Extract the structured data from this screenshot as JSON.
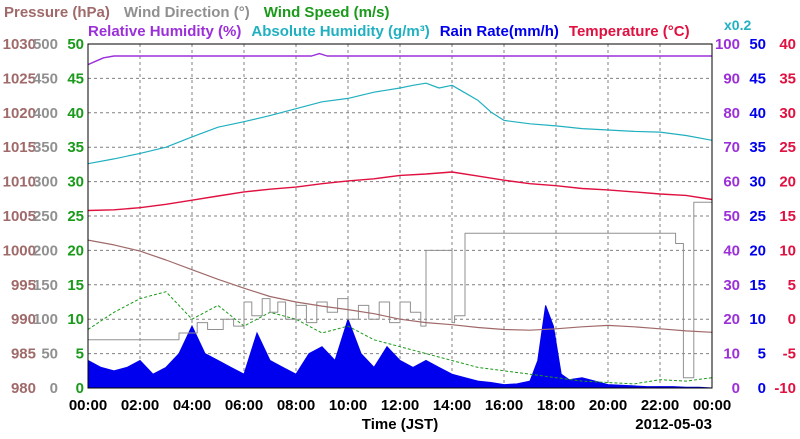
{
  "chart_data": {
    "type": "line",
    "date_label": "2012-05-03",
    "xlabel": "Time (JST)",
    "xlim": [
      0,
      24
    ],
    "x_ticks": [
      "00:00",
      "02:00",
      "04:00",
      "06:00",
      "08:00",
      "10:00",
      "12:00",
      "14:00",
      "16:00",
      "18:00",
      "20:00",
      "22:00",
      "00:00"
    ],
    "colors": {
      "pressure": "#a06a6a",
      "wind_direction": "#909090",
      "wind_speed": "#1a9a1a",
      "humidity": "#9b30d9",
      "abs_humidity": "#20b0c0",
      "rain": "#0000ee",
      "temperature": "#e01040",
      "grid": "#808080"
    },
    "legend_row1": [
      {
        "key": "pressure",
        "label": "Pressure (hPa)"
      },
      {
        "key": "wind_direction",
        "label": "Wind Direction (°)"
      },
      {
        "key": "wind_speed",
        "label": "Wind Speed (m/s)"
      }
    ],
    "legend_row2": [
      {
        "key": "humidity",
        "label": "Relative Humidity (%)"
      },
      {
        "key": "abs_humidity",
        "label": "Absolute Humidity (g/m³)"
      },
      {
        "key": "rain",
        "label": "Rain Rate(mm/h)"
      },
      {
        "key": "temperature",
        "label": "Temperature (°C)"
      }
    ],
    "abs_humidity_scale_note": "x0.2",
    "axes": {
      "pressure": {
        "color_key": "pressure",
        "ticks": [
          "980",
          "985",
          "990",
          "995",
          "1000",
          "1005",
          "1010",
          "1015",
          "1020",
          "1025",
          "1030"
        ]
      },
      "wind_direction": {
        "color_key": "wind_direction",
        "ticks": [
          "0",
          "50",
          "100",
          "150",
          "200",
          "250",
          "300",
          "350",
          "400",
          "450",
          "500"
        ]
      },
      "wind_speed": {
        "color_key": "wind_speed",
        "ticks": [
          "0",
          "5",
          "10",
          "15",
          "20",
          "25",
          "30",
          "35",
          "40",
          "45",
          "50"
        ]
      },
      "humidity": {
        "color_key": "humidity",
        "ticks": [
          "0",
          "10",
          "20",
          "30",
          "40",
          "50",
          "60",
          "70",
          "80",
          "90",
          "100"
        ]
      },
      "rain": {
        "color_key": "rain",
        "ticks": [
          "0",
          "5",
          "10",
          "15",
          "20",
          "25",
          "30",
          "35",
          "40",
          "45",
          "50"
        ]
      },
      "temperature": {
        "color_key": "temperature",
        "ticks": [
          "-10",
          "-5",
          "0",
          "5",
          "10",
          "15",
          "20",
          "25",
          "30",
          "35",
          "40"
        ]
      }
    },
    "series": {
      "temperature": {
        "unit": "°C",
        "x": [
          0,
          1,
          2,
          3,
          4,
          5,
          6,
          7,
          8,
          9,
          10,
          11,
          12,
          13,
          14,
          15,
          16,
          17,
          18,
          19,
          20,
          21,
          22,
          23,
          24
        ],
        "values": [
          15.8,
          15.9,
          16.2,
          16.7,
          17.3,
          17.9,
          18.5,
          18.9,
          19.2,
          19.7,
          20.1,
          20.4,
          20.9,
          21.1,
          21.4,
          20.8,
          20.2,
          19.7,
          19.4,
          19.0,
          18.8,
          18.5,
          18.2,
          18.0,
          17.4
        ]
      },
      "abs_humidity": {
        "unit": "g/m³",
        "scale": "x0.2",
        "x": [
          0,
          1,
          2,
          3,
          4,
          5,
          6,
          7,
          8,
          9,
          10,
          11,
          12,
          12.5,
          13,
          13.5,
          14,
          14.5,
          15,
          15.5,
          16,
          17,
          18,
          19,
          20,
          21,
          22,
          23,
          24
        ],
        "values": [
          32.6,
          33.3,
          34.1,
          35.0,
          36.5,
          37.9,
          38.7,
          39.6,
          40.6,
          41.6,
          42.1,
          43.0,
          43.6,
          44.0,
          44.3,
          43.6,
          44.0,
          42.9,
          41.8,
          40.1,
          38.9,
          38.4,
          38.1,
          37.7,
          37.5,
          37.3,
          37.2,
          36.7,
          36.0
        ]
      },
      "humidity": {
        "unit": "%",
        "x": [
          0,
          0.3,
          0.6,
          1,
          2,
          3,
          4,
          5,
          6,
          7,
          8,
          8.6,
          8.9,
          9.2,
          10,
          12,
          14,
          16,
          18,
          20,
          22,
          23.5,
          24
        ],
        "values": [
          94,
          95,
          96,
          96.5,
          96.5,
          96.5,
          96.5,
          96.5,
          96.5,
          96.5,
          96.5,
          96.5,
          97.2,
          96.5,
          96.5,
          96.5,
          96.5,
          96.5,
          96.5,
          96.5,
          96.5,
          96.5,
          96.5
        ]
      },
      "pressure": {
        "unit": "hPa",
        "x": [
          0,
          1,
          2,
          3,
          4,
          5,
          6,
          7,
          8,
          9,
          10,
          11,
          12,
          13,
          14,
          15,
          16,
          17,
          18,
          19,
          20,
          21,
          22,
          23,
          24
        ],
        "values": [
          1001.5,
          1000.8,
          999.9,
          998.6,
          997.2,
          995.8,
          994.5,
          993.3,
          992.5,
          991.9,
          991.4,
          990.8,
          990.0,
          989.5,
          989.2,
          988.8,
          988.5,
          988.4,
          988.6,
          988.9,
          989.1,
          988.9,
          988.6,
          988.3,
          988.1
        ]
      },
      "wind_direction": {
        "unit": "°",
        "x": [
          0,
          2,
          3.5,
          4.2,
          4.6,
          5.2,
          5.6,
          6.0,
          6.3,
          6.7,
          7.0,
          7.3,
          7.6,
          8.0,
          8.4,
          8.8,
          9.2,
          9.6,
          10.0,
          10.4,
          10.8,
          11.2,
          11.6,
          12.0,
          12.4,
          12.8,
          13.0,
          13.5,
          14.0,
          14.1,
          14.5,
          15.0,
          18,
          20,
          22,
          22.6,
          22.9,
          23.3,
          24
        ],
        "values": [
          70,
          70,
          80,
          95,
          85,
          100,
          90,
          125,
          105,
          130,
          110,
          125,
          100,
          120,
          95,
          125,
          110,
          130,
          100,
          120,
          100,
          125,
          95,
          125,
          110,
          90,
          200,
          200,
          95,
          105,
          225,
          225,
          225,
          225,
          225,
          210,
          15,
          270,
          270
        ]
      },
      "wind_speed": {
        "unit": "m/s",
        "x": [
          0,
          1,
          2,
          3,
          4,
          5,
          6,
          7,
          8,
          9,
          10,
          11,
          12,
          13,
          14,
          15,
          16,
          17,
          18,
          19,
          20,
          21,
          22,
          23,
          24
        ],
        "values": [
          8.5,
          11,
          13,
          14,
          10,
          12,
          9,
          11,
          10,
          8,
          9,
          7,
          6,
          5,
          4,
          3,
          2.5,
          2,
          1.5,
          1,
          0.8,
          0.6,
          1.2,
          1,
          1.5
        ]
      },
      "rain": {
        "unit": "mm/h",
        "x": [
          0,
          0.5,
          1,
          1.5,
          2,
          2.5,
          3,
          3.5,
          4,
          4.5,
          5,
          5.5,
          6,
          6.5,
          7,
          7.5,
          8,
          8.5,
          9,
          9.5,
          10,
          10.5,
          11,
          11.5,
          12,
          12.5,
          13,
          13.5,
          14,
          14.5,
          15,
          15.5,
          16,
          16.5,
          17,
          17.3,
          17.6,
          17.9,
          18.2,
          18.5,
          19,
          19.5,
          20,
          20.5,
          21,
          21.5,
          22,
          22.5,
          23,
          23.5,
          24
        ],
        "values": [
          4,
          3,
          2.5,
          3,
          4,
          2,
          3,
          5,
          9,
          5,
          4,
          3,
          2,
          8,
          4,
          3,
          2,
          5,
          6,
          4,
          10,
          5,
          3,
          6,
          4,
          3,
          4,
          3,
          2,
          1.5,
          1,
          0.8,
          0.5,
          0.6,
          1,
          4,
          12,
          9,
          2,
          1.2,
          1.5,
          1,
          0.5,
          0.4,
          0.3,
          0.2,
          0.2,
          0.2,
          0.1,
          0.1,
          0
        ]
      }
    }
  }
}
